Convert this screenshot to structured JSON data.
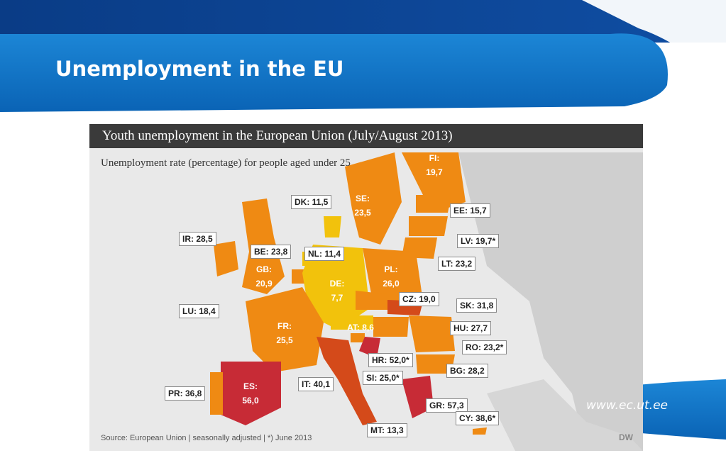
{
  "slide": {
    "title": "Unemployment in the EU",
    "url": "www.ec.ut.ee",
    "colors": {
      "primary_blue": "#0a6bc1",
      "dark_blue": "#0b3a86",
      "accent": "#1a7fd0"
    }
  },
  "map": {
    "title": "Youth unemployment in the European Union (July/August 2013)",
    "subtitle": "Unemployment rate (percentage) for people aged under 25",
    "source": "Source: European Union | seasonally adjusted | *) June 2013",
    "credit": "DW",
    "colors": {
      "low": "#f2c20c",
      "mid": "#f5a623",
      "high": "#ef8a13",
      "very_high": "#d44a1a",
      "extreme": "#c72b36",
      "non_eu": "#cfcfcf",
      "sea": "#e9e9e9"
    },
    "callouts": [
      {
        "code": "IR",
        "text": "IR: 28,5"
      },
      {
        "code": "BE",
        "text": "BE: 23,8"
      },
      {
        "code": "LU",
        "text": "LU: 18,4"
      },
      {
        "code": "DK",
        "text": "DK: 11,5"
      },
      {
        "code": "NL",
        "text": "NL: 11,4"
      },
      {
        "code": "EE",
        "text": "EE: 15,7"
      },
      {
        "code": "LV",
        "text": "LV: 19,7*"
      },
      {
        "code": "LT",
        "text": "LT: 23,2"
      },
      {
        "code": "CZ",
        "text": "CZ: 19,0"
      },
      {
        "code": "SK",
        "text": "SK: 31,8"
      },
      {
        "code": "HU",
        "text": "HU: 27,7"
      },
      {
        "code": "RO",
        "text": "RO: 23,2*"
      },
      {
        "code": "HR",
        "text": "HR: 52,0*"
      },
      {
        "code": "SI",
        "text": "SI: 25,0*"
      },
      {
        "code": "BG",
        "text": "BG: 28,2"
      },
      {
        "code": "IT",
        "text": "IT: 40,1"
      },
      {
        "code": "PR",
        "text": "PR: 36,8"
      },
      {
        "code": "GR",
        "text": "GR: 57,3"
      },
      {
        "code": "CY",
        "text": "CY: 38,6*"
      },
      {
        "code": "MT",
        "text": "MT: 13,3"
      }
    ],
    "inline": [
      {
        "code": "FI",
        "label": "FI:",
        "value": "19,7"
      },
      {
        "code": "SE",
        "label": "SE:",
        "value": "23,5"
      },
      {
        "code": "GB",
        "label": "GB:",
        "value": "20,9"
      },
      {
        "code": "DE",
        "label": "DE:",
        "value": "7,7"
      },
      {
        "code": "PL",
        "label": "PL:",
        "value": "26,0"
      },
      {
        "code": "FR",
        "label": "FR:",
        "value": "25,5"
      },
      {
        "code": "ES",
        "label": "ES:",
        "value": "56,0"
      },
      {
        "code": "AT",
        "label": "AT: 8,6",
        "value": ""
      }
    ]
  }
}
